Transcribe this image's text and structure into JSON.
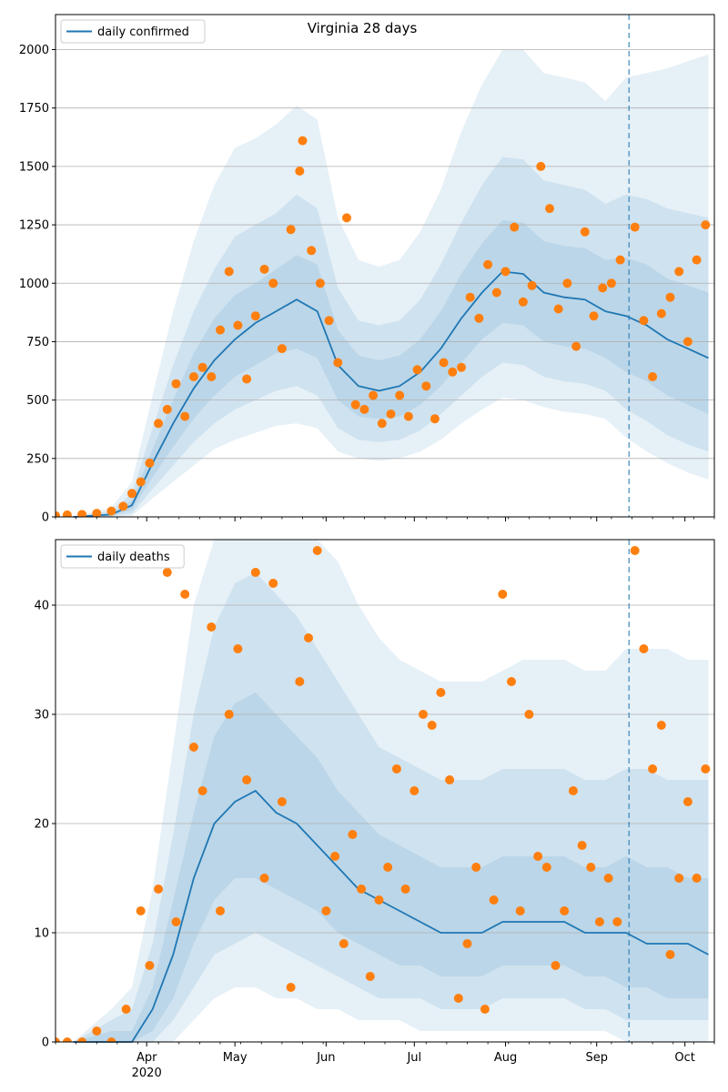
{
  "figure": {
    "title": "Virginia 28 days"
  },
  "colors": {
    "line": "#1f77b4",
    "points": "#ff7f0e",
    "band": "#1f77b4",
    "grid": "#b0b0b0",
    "vline": "#1f77b4"
  },
  "chart_data": [
    {
      "type": "line",
      "title": "Virginia 28 days",
      "legend": {
        "label": "daily confirmed",
        "placement": "top-left"
      },
      "ylim": [
        0,
        2150
      ],
      "yticks": [
        0,
        250,
        500,
        750,
        1000,
        1250,
        1500,
        1750,
        2000
      ],
      "grid": "y",
      "forecast_start": "2020-09-12",
      "line_x": [
        "2020-03-07",
        "2020-03-20",
        "2020-03-27",
        "2020-04-03",
        "2020-04-10",
        "2020-04-17",
        "2020-04-24",
        "2020-05-01",
        "2020-05-08",
        "2020-05-15",
        "2020-05-22",
        "2020-05-29",
        "2020-06-05",
        "2020-06-12",
        "2020-06-19",
        "2020-06-26",
        "2020-07-03",
        "2020-07-10",
        "2020-07-17",
        "2020-07-24",
        "2020-07-31",
        "2020-08-07",
        "2020-08-14",
        "2020-08-21",
        "2020-08-28",
        "2020-09-04",
        "2020-09-11",
        "2020-09-18",
        "2020-09-25",
        "2020-10-02",
        "2020-10-09"
      ],
      "line_y": [
        0,
        10,
        50,
        230,
        400,
        550,
        670,
        760,
        830,
        880,
        930,
        880,
        650,
        560,
        540,
        560,
        620,
        720,
        850,
        960,
        1050,
        1040,
        960,
        940,
        930,
        880,
        860,
        820,
        760,
        720,
        680
      ],
      "bands": [
        {
          "level": "50%",
          "lower": [
            0,
            5,
            30,
            170,
            300,
            420,
            520,
            600,
            650,
            700,
            720,
            680,
            500,
            430,
            420,
            430,
            480,
            560,
            660,
            760,
            830,
            820,
            750,
            730,
            720,
            680,
            620,
            580,
            520,
            480,
            440
          ],
          "upper": [
            0,
            15,
            70,
            290,
            500,
            700,
            850,
            950,
            1000,
            1060,
            1120,
            1080,
            800,
            690,
            670,
            690,
            760,
            880,
            1040,
            1170,
            1270,
            1260,
            1180,
            1160,
            1150,
            1100,
            1110,
            1080,
            1020,
            990,
            960
          ]
        },
        {
          "level": "80%",
          "lower": [
            0,
            2,
            15,
            120,
            220,
            320,
            400,
            460,
            500,
            540,
            560,
            520,
            380,
            330,
            320,
            330,
            370,
            440,
            520,
            600,
            660,
            650,
            600,
            580,
            570,
            540,
            460,
            410,
            350,
            310,
            280
          ],
          "upper": [
            0,
            25,
            100,
            380,
            650,
            880,
            1060,
            1200,
            1250,
            1300,
            1380,
            1320,
            980,
            840,
            820,
            840,
            930,
            1080,
            1260,
            1420,
            1540,
            1530,
            1440,
            1420,
            1400,
            1340,
            1380,
            1360,
            1320,
            1300,
            1280
          ]
        },
        {
          "level": "95%",
          "lower": [
            0,
            0,
            5,
            80,
            150,
            220,
            290,
            330,
            360,
            390,
            400,
            380,
            280,
            250,
            240,
            250,
            280,
            330,
            400,
            460,
            510,
            500,
            470,
            450,
            440,
            420,
            340,
            280,
            230,
            190,
            160
          ],
          "upper": [
            0,
            40,
            150,
            520,
            880,
            1180,
            1420,
            1580,
            1620,
            1680,
            1760,
            1700,
            1280,
            1100,
            1070,
            1100,
            1220,
            1400,
            1650,
            1850,
            2000,
            2000,
            1900,
            1880,
            1860,
            1780,
            1880,
            1900,
            1920,
            1950,
            1980
          ]
        }
      ],
      "points_x": [
        "2020-03-01",
        "2020-03-05",
        "2020-03-10",
        "2020-03-15",
        "2020-03-20",
        "2020-03-24",
        "2020-03-27",
        "2020-03-30",
        "2020-04-02",
        "2020-04-05",
        "2020-04-08",
        "2020-04-11",
        "2020-04-14",
        "2020-04-17",
        "2020-04-20",
        "2020-04-23",
        "2020-04-26",
        "2020-04-29",
        "2020-05-02",
        "2020-05-05",
        "2020-05-08",
        "2020-05-11",
        "2020-05-14",
        "2020-05-17",
        "2020-05-20",
        "2020-05-23",
        "2020-05-24",
        "2020-05-27",
        "2020-05-30",
        "2020-06-02",
        "2020-06-05",
        "2020-06-08",
        "2020-06-11",
        "2020-06-14",
        "2020-06-17",
        "2020-06-20",
        "2020-06-23",
        "2020-06-26",
        "2020-06-29",
        "2020-07-02",
        "2020-07-05",
        "2020-07-08",
        "2020-07-11",
        "2020-07-14",
        "2020-07-17",
        "2020-07-20",
        "2020-07-23",
        "2020-07-26",
        "2020-07-29",
        "2020-08-01",
        "2020-08-04",
        "2020-08-07",
        "2020-08-10",
        "2020-08-13",
        "2020-08-16",
        "2020-08-19",
        "2020-08-22",
        "2020-08-25",
        "2020-08-28",
        "2020-08-31",
        "2020-09-03",
        "2020-09-06",
        "2020-09-09",
        "2020-09-14",
        "2020-09-17",
        "2020-09-20",
        "2020-09-23",
        "2020-09-26",
        "2020-09-29",
        "2020-10-02",
        "2020-10-05",
        "2020-10-08"
      ],
      "points_y": [
        5,
        8,
        10,
        15,
        25,
        45,
        100,
        150,
        230,
        400,
        460,
        570,
        430,
        600,
        640,
        600,
        800,
        1050,
        820,
        590,
        860,
        1060,
        1000,
        720,
        1230,
        1480,
        1610,
        1140,
        1000,
        840,
        660,
        1280,
        480,
        460,
        520,
        400,
        440,
        520,
        430,
        630,
        560,
        420,
        660,
        620,
        640,
        940,
        850,
        1080,
        960,
        1050,
        1240,
        920,
        990,
        1500,
        1320,
        890,
        1000,
        730,
        1220,
        860,
        980,
        1000,
        1100,
        1240,
        840,
        600,
        870,
        940,
        1050,
        750,
        1100,
        1250
      ]
    },
    {
      "type": "line",
      "title": "",
      "legend": {
        "label": "daily deaths",
        "placement": "top-left"
      },
      "ylim": [
        0,
        46
      ],
      "yticks": [
        0,
        10,
        20,
        30,
        40
      ],
      "grid": "y",
      "forecast_start": "2020-09-12",
      "line_x": [
        "2020-03-07",
        "2020-03-20",
        "2020-03-27",
        "2020-04-03",
        "2020-04-10",
        "2020-04-17",
        "2020-04-24",
        "2020-05-01",
        "2020-05-08",
        "2020-05-15",
        "2020-05-22",
        "2020-05-29",
        "2020-06-05",
        "2020-06-12",
        "2020-06-19",
        "2020-06-26",
        "2020-07-03",
        "2020-07-10",
        "2020-07-17",
        "2020-07-24",
        "2020-07-31",
        "2020-08-07",
        "2020-08-14",
        "2020-08-21",
        "2020-08-28",
        "2020-09-04",
        "2020-09-11",
        "2020-09-18",
        "2020-09-25",
        "2020-10-02",
        "2020-10-09"
      ],
      "line_y": [
        0,
        0,
        0,
        3,
        8,
        15,
        20,
        22,
        23,
        21,
        20,
        18,
        16,
        14,
        13,
        12,
        11,
        10,
        10,
        10,
        11,
        11,
        11,
        11,
        10,
        10,
        10,
        9,
        9,
        9,
        8
      ],
      "bands": [
        {
          "level": "50%",
          "lower": [
            0,
            0,
            0,
            1,
            4,
            9,
            13,
            15,
            15,
            14,
            13,
            12,
            10,
            9,
            8,
            7,
            7,
            6,
            6,
            6,
            7,
            7,
            7,
            7,
            6,
            6,
            5,
            5,
            4,
            4,
            4
          ],
          "upper": [
            0,
            1,
            1,
            5,
            13,
            21,
            28,
            31,
            32,
            30,
            28,
            26,
            23,
            21,
            19,
            18,
            17,
            16,
            16,
            16,
            17,
            17,
            17,
            17,
            16,
            16,
            17,
            16,
            16,
            15,
            15
          ]
        },
        {
          "level": "80%",
          "lower": [
            0,
            0,
            0,
            0,
            2,
            5,
            8,
            9,
            10,
            9,
            8,
            7,
            6,
            5,
            4,
            4,
            4,
            3,
            3,
            3,
            4,
            4,
            4,
            4,
            3,
            3,
            2,
            2,
            2,
            2,
            2
          ],
          "upper": [
            0,
            2,
            3,
            9,
            19,
            30,
            38,
            42,
            43,
            41,
            39,
            36,
            33,
            30,
            27,
            26,
            25,
            24,
            24,
            24,
            25,
            25,
            25,
            25,
            24,
            24,
            25,
            25,
            24,
            24,
            24
          ]
        },
        {
          "level": "95%",
          "lower": [
            0,
            0,
            0,
            0,
            0,
            2,
            4,
            5,
            5,
            4,
            4,
            3,
            3,
            2,
            2,
            2,
            1,
            1,
            1,
            1,
            1,
            1,
            1,
            1,
            1,
            1,
            0,
            0,
            0,
            0,
            0
          ],
          "upper": [
            0,
            3,
            5,
            14,
            27,
            40,
            50,
            56,
            58,
            56,
            52,
            48,
            44,
            40,
            37,
            35,
            34,
            33,
            33,
            33,
            34,
            35,
            35,
            35,
            34,
            34,
            36,
            36,
            36,
            35,
            35
          ]
        }
      ],
      "points_x": [
        "2020-03-01",
        "2020-03-05",
        "2020-03-10",
        "2020-03-15",
        "2020-03-20",
        "2020-03-25",
        "2020-03-30",
        "2020-04-02",
        "2020-04-05",
        "2020-04-08",
        "2020-04-11",
        "2020-04-14",
        "2020-04-17",
        "2020-04-20",
        "2020-04-23",
        "2020-04-26",
        "2020-04-29",
        "2020-05-02",
        "2020-05-05",
        "2020-05-08",
        "2020-05-11",
        "2020-05-14",
        "2020-05-17",
        "2020-05-20",
        "2020-05-23",
        "2020-05-26",
        "2020-05-29",
        "2020-06-01",
        "2020-06-04",
        "2020-06-07",
        "2020-06-10",
        "2020-06-13",
        "2020-06-16",
        "2020-06-19",
        "2020-06-22",
        "2020-06-25",
        "2020-06-28",
        "2020-07-01",
        "2020-07-04",
        "2020-07-07",
        "2020-07-10",
        "2020-07-13",
        "2020-07-16",
        "2020-07-19",
        "2020-07-22",
        "2020-07-25",
        "2020-07-28",
        "2020-07-31",
        "2020-08-03",
        "2020-08-06",
        "2020-08-09",
        "2020-08-12",
        "2020-08-15",
        "2020-08-18",
        "2020-08-21",
        "2020-08-24",
        "2020-08-27",
        "2020-08-30",
        "2020-09-02",
        "2020-09-05",
        "2020-09-08",
        "2020-09-14",
        "2020-09-17",
        "2020-09-20",
        "2020-09-23",
        "2020-09-26",
        "2020-09-29",
        "2020-10-02",
        "2020-10-05",
        "2020-10-08"
      ],
      "points_y": [
        0,
        0,
        0,
        1,
        0,
        3,
        12,
        7,
        14,
        43,
        11,
        41,
        27,
        23,
        38,
        12,
        30,
        36,
        24,
        43,
        15,
        42,
        22,
        5,
        33,
        37,
        45,
        12,
        17,
        9,
        19,
        14,
        6,
        13,
        16,
        25,
        14,
        23,
        30,
        29,
        32,
        24,
        4,
        9,
        16,
        3,
        13,
        41,
        33,
        12,
        30,
        17,
        16,
        7,
        12,
        23,
        18,
        16,
        11,
        15,
        11,
        45,
        36,
        25,
        29,
        8,
        15,
        22,
        15,
        25
      ]
    }
  ],
  "x_axis": {
    "xlim": [
      "2020-03-01",
      "2020-10-11"
    ],
    "month_ticks": [
      "2020-04-01",
      "2020-05-01",
      "2020-06-01",
      "2020-07-01",
      "2020-08-01",
      "2020-09-01",
      "2020-10-01"
    ],
    "month_labels": [
      "Apr",
      "May",
      "Jun",
      "Jul",
      "Aug",
      "Sep",
      "Oct"
    ],
    "year_label": "2020"
  }
}
